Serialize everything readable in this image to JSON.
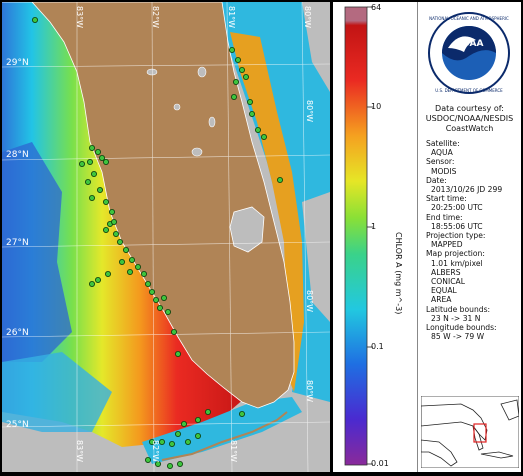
{
  "map": {
    "lat_labels": [
      "29°N",
      "28°N",
      "27°N",
      "26°N",
      "25°N"
    ],
    "lon_labels": [
      "83°W",
      "82°W",
      "81°W",
      "80°W"
    ],
    "colors": {
      "land": "#b08456",
      "no_data": "#bdbdbd",
      "coast": "#ffffff",
      "station": "#3ec43e",
      "station_outline": "#0b3d0b"
    }
  },
  "colorbar": {
    "label": "CHLOR A (mg m^-3)",
    "ticks": [
      "64",
      "10",
      "1",
      "0.1",
      "0.01"
    ]
  },
  "info": {
    "credit": [
      "Data courtesy of:",
      "USDOC/NOAA/NESDIS",
      "CoastWatch"
    ],
    "fields": [
      {
        "k": "Satellite:",
        "v": [
          "AQUA"
        ]
      },
      {
        "k": "Sensor:",
        "v": [
          "MODIS"
        ]
      },
      {
        "k": "Date:",
        "v": [
          "2013/10/26 JD 299"
        ]
      },
      {
        "k": "Start time:",
        "v": [
          "20:25:00 UTC"
        ]
      },
      {
        "k": "End time:",
        "v": [
          "18:55:06 UTC"
        ]
      },
      {
        "k": "Projection type:",
        "v": [
          "MAPPED"
        ]
      },
      {
        "k": "Map projection:",
        "v": [
          "1.01 km/pixel",
          "ALBERS",
          "CONICAL",
          "EQUAL",
          "AREA"
        ]
      },
      {
        "k": "Latitude bounds:",
        "v": [
          "23 N -> 31 N"
        ]
      },
      {
        "k": "Longitude bounds:",
        "v": [
          "85 W -> 79 W"
        ]
      }
    ]
  },
  "logo": {
    "text": "NOAA"
  }
}
